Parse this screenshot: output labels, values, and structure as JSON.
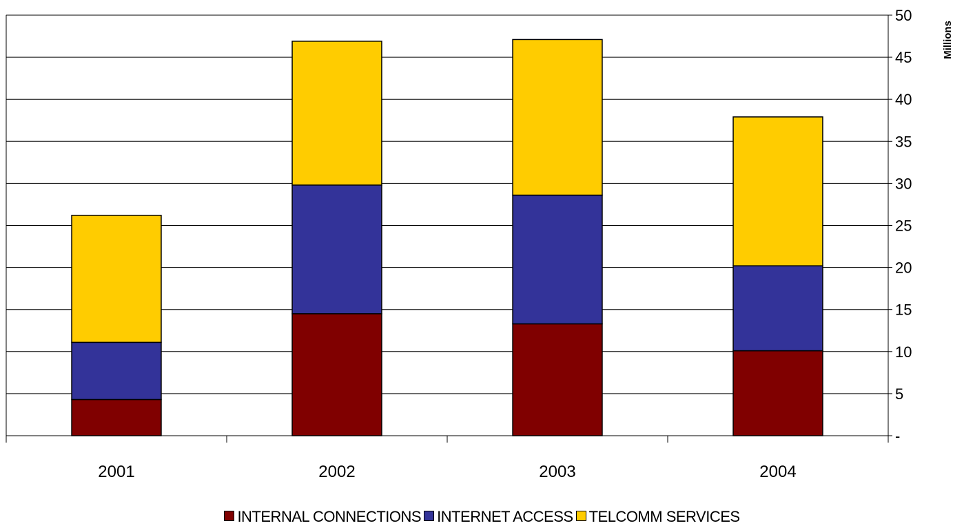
{
  "chart_data": {
    "type": "bar",
    "stacked": true,
    "categories": [
      "2001",
      "2002",
      "2003",
      "2004"
    ],
    "series": [
      {
        "name": "INTERNAL CONNECTIONS",
        "color": "#800000",
        "values": [
          4.3,
          14.5,
          13.3,
          10.1
        ]
      },
      {
        "name": "INTERNET ACCESS",
        "color": "#333399",
        "values": [
          6.8,
          15.3,
          15.3,
          10.1
        ]
      },
      {
        "name": "TELCOMM SERVICES",
        "color": "#FFCC00",
        "values": [
          15.1,
          17.1,
          18.5,
          17.7
        ]
      }
    ],
    "y_ticks": [
      "-",
      "5",
      "10",
      "15",
      "20",
      "25",
      "30",
      "35",
      "40",
      "45",
      "50"
    ],
    "ylim": [
      0,
      50
    ],
    "ylabel": "Millions",
    "y_axis_side": "right",
    "grid": true,
    "legend_position": "bottom"
  }
}
